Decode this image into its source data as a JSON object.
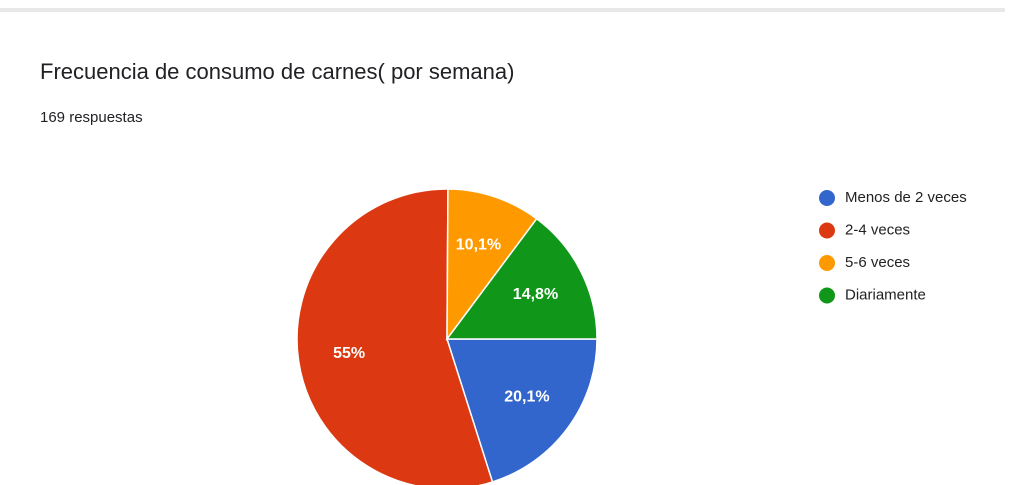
{
  "chart_data": {
    "type": "pie",
    "title": "Frecuencia de consumo de carnes( por semana)",
    "subtitle": "169 respuestas",
    "categories": [
      "Menos de 2 veces",
      "2-4 veces",
      "5-6 veces",
      "Diariamente"
    ],
    "values": [
      20.1,
      55,
      10.1,
      14.8
    ],
    "value_labels": [
      "20,1%",
      "55%",
      "10,1%",
      "14,8%"
    ],
    "colors": [
      "#3366cc",
      "#dc3912",
      "#ff9900",
      "#109618"
    ],
    "legend": "right"
  }
}
